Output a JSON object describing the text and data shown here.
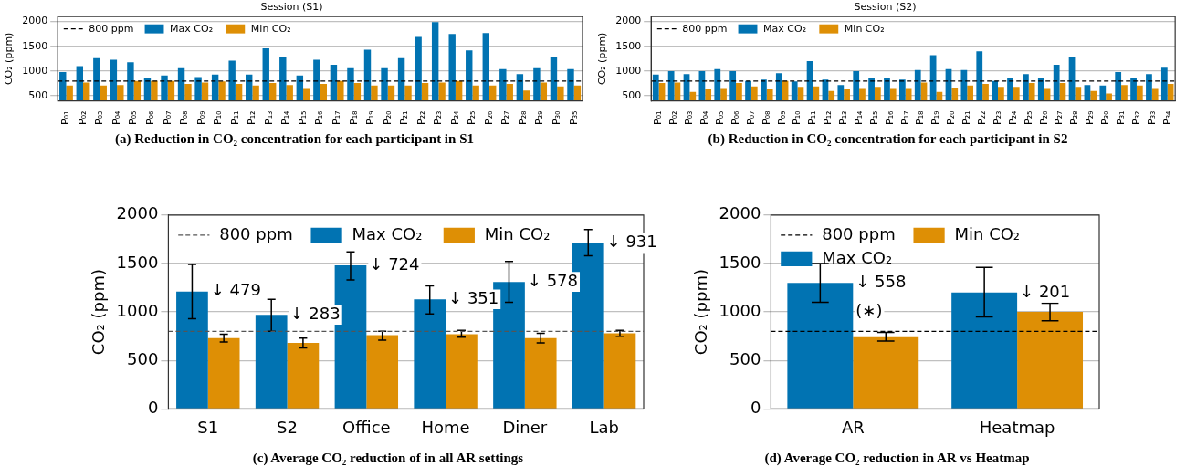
{
  "chart_data": [
    {
      "type": "bar",
      "title": "Session (S1)",
      "ylabel": "CO₂ (ppm)",
      "categories": [
        "P₀₁",
        "P₀₂",
        "P₀₃",
        "P₀₄",
        "P₀₅",
        "P₀₆",
        "P₀₇",
        "P₀₈",
        "P₀₉",
        "P₁₀",
        "P₁₁",
        "P₁₂",
        "P₁₃",
        "P₁₄",
        "P₁₅",
        "P₁₆",
        "P₁₇",
        "P₁₈",
        "P₁₉",
        "P₂₀",
        "P₂₁",
        "P₂₂",
        "P₂₃",
        "P₂₄",
        "P₂₅",
        "P₂₆",
        "P₂₇",
        "P₂₈",
        "P₂₉",
        "P₃₀",
        "P₃₅"
      ],
      "series": [
        {
          "name": "Max CO₂",
          "color": "#0173b2",
          "values": [
            980,
            1100,
            1260,
            1230,
            1180,
            850,
            910,
            1060,
            880,
            930,
            1210,
            930,
            1460,
            1290,
            910,
            1230,
            1130,
            1060,
            1430,
            1060,
            1260,
            1690,
            1990,
            1750,
            1420,
            1770,
            1040,
            940,
            1060,
            1290,
            1040
          ]
        },
        {
          "name": "Min CO₂",
          "color": "#de8f05",
          "values": [
            710,
            770,
            710,
            720,
            800,
            800,
            800,
            740,
            770,
            790,
            740,
            710,
            760,
            720,
            640,
            740,
            800,
            760,
            710,
            710,
            710,
            760,
            770,
            800,
            710,
            710,
            740,
            610,
            770,
            690,
            710
          ]
        }
      ],
      "ylim": [
        400,
        2100
      ],
      "yticks": [
        500,
        1000,
        1500,
        2000
      ],
      "grid": "y",
      "legend": "top left",
      "ref_lines": [
        {
          "axis": "y",
          "value": 800,
          "label": "800 ppm",
          "color": "#000000",
          "line_style": "dashed"
        }
      ],
      "annotations": [
        "(a) Reduction in CO₂ concentration for each participant in S1"
      ]
    },
    {
      "type": "bar",
      "title": "Session (S2)",
      "ylabel": "CO₂ (ppm)",
      "categories": [
        "P₀₁",
        "P₀₂",
        "P₀₃",
        "P₀₄",
        "P₀₅",
        "P₀₆",
        "P₀₇",
        "P₀₈",
        "P₀₉",
        "P₁₀",
        "P₁₁",
        "P₁₂",
        "P₁₃",
        "P₁₄",
        "P₁₅",
        "P₁₆",
        "P₁₇",
        "P₁₈",
        "P₁₉",
        "P₂₀",
        "P₂₁",
        "P₂₂",
        "P₂₃",
        "P₂₄",
        "P₂₅",
        "P₂₆",
        "P₂₇",
        "P₂₈",
        "P₂₉",
        "P₃₀",
        "P₃₁",
        "P₃₂",
        "P₃₃",
        "P₃₄"
      ],
      "series": [
        {
          "name": "Max CO₂",
          "color": "#0173b2",
          "values": [
            930,
            1000,
            940,
            1000,
            1040,
            1000,
            800,
            830,
            960,
            790,
            1200,
            830,
            720,
            1000,
            870,
            850,
            830,
            1020,
            1320,
            1040,
            1020,
            1400,
            800,
            850,
            940,
            850,
            1130,
            1280,
            720,
            710,
            980,
            870,
            940,
            1070
          ]
        },
        {
          "name": "Min CO₂",
          "color": "#de8f05",
          "values": [
            760,
            770,
            580,
            630,
            640,
            760,
            690,
            630,
            800,
            680,
            690,
            600,
            630,
            640,
            680,
            640,
            640,
            770,
            580,
            660,
            710,
            740,
            680,
            680,
            760,
            640,
            760,
            680,
            600,
            550,
            720,
            710,
            640,
            740
          ]
        }
      ],
      "ylim": [
        400,
        2100
      ],
      "yticks": [
        500,
        1000,
        1500,
        2000
      ],
      "grid": "y",
      "legend": "top left",
      "ref_lines": [
        {
          "axis": "y",
          "value": 800,
          "label": "800 ppm",
          "color": "#000000",
          "line_style": "dashed"
        }
      ],
      "annotations": [
        "(b) Reduction in CO₂ concentration for each participant in S2"
      ]
    },
    {
      "type": "bar",
      "ylabel": "CO₂ (ppm)",
      "categories": [
        "S1",
        "S2",
        "Office",
        "Home",
        "Diner",
        "Lab"
      ],
      "series": [
        {
          "name": "Max CO₂",
          "color": "#0173b2",
          "values": [
            1210,
            970,
            1480,
            1130,
            1310,
            1710
          ],
          "errors": [
            [
              930,
              1490
            ],
            [
              800,
              1130
            ],
            [
              1330,
              1620
            ],
            [
              980,
              1270
            ],
            [
              1100,
              1520
            ],
            [
              1580,
              1850
            ]
          ]
        },
        {
          "name": "Min CO₂",
          "color": "#de8f05",
          "values": [
            730,
            680,
            760,
            770,
            730,
            780
          ],
          "errors": [
            [
              690,
              770
            ],
            [
              630,
              730
            ],
            [
              710,
              800
            ],
            [
              740,
              810
            ],
            [
              680,
              780
            ],
            [
              750,
              810
            ]
          ]
        }
      ],
      "ylim": [
        0,
        2000
      ],
      "yticks": [
        0,
        500,
        1000,
        1500,
        2000
      ],
      "grid": "y",
      "legend": "top left",
      "ref_lines": [
        {
          "axis": "y",
          "value": 800,
          "label": "800 ppm",
          "color": "#555555",
          "line_style": "dashed"
        }
      ],
      "annotations": [
        {
          "text": "↓ 479",
          "x": "S1",
          "y": 1210
        },
        {
          "text": "↓ 283",
          "x": "S2",
          "y": 970
        },
        {
          "text": "↓ 724",
          "x": "Office",
          "y": 1480
        },
        {
          "text": "↓ 351",
          "x": "Home",
          "y": 1130
        },
        {
          "text": "↓ 578",
          "x": "Diner",
          "y": 1310
        },
        {
          "text": "↓ 931",
          "x": "Lab",
          "y": 1710
        },
        "(c) Average CO₂ reduction of in all AR settings"
      ]
    },
    {
      "type": "bar",
      "ylabel": "CO₂ (ppm)",
      "categories": [
        "AR",
        "Heatmap"
      ],
      "series": [
        {
          "name": "Max CO₂",
          "color": "#0173b2",
          "values": [
            1300,
            1200
          ],
          "errors": [
            [
              1100,
              1500
            ],
            [
              950,
              1460
            ]
          ]
        },
        {
          "name": "Min CO₂",
          "color": "#de8f05",
          "values": [
            740,
            1000
          ],
          "errors": [
            [
              700,
              790
            ],
            [
              910,
              1090
            ]
          ]
        }
      ],
      "ylim": [
        0,
        2000
      ],
      "yticks": [
        0,
        500,
        1000,
        1500,
        2000
      ],
      "grid": "y",
      "legend": "top left",
      "ref_lines": [
        {
          "axis": "y",
          "value": 800,
          "label": "800 ppm",
          "color": "#000000",
          "line_style": "dashed"
        }
      ],
      "annotations": [
        {
          "text": "↓ 558",
          "x": "AR",
          "y": 1300
        },
        {
          "text": "(∗)",
          "x": "AR",
          "y": 1000
        },
        {
          "text": "↓ 201",
          "x": "Heatmap",
          "y": 1200
        },
        "(d) Average CO₂ reduction in AR vs Heatmap"
      ]
    }
  ]
}
